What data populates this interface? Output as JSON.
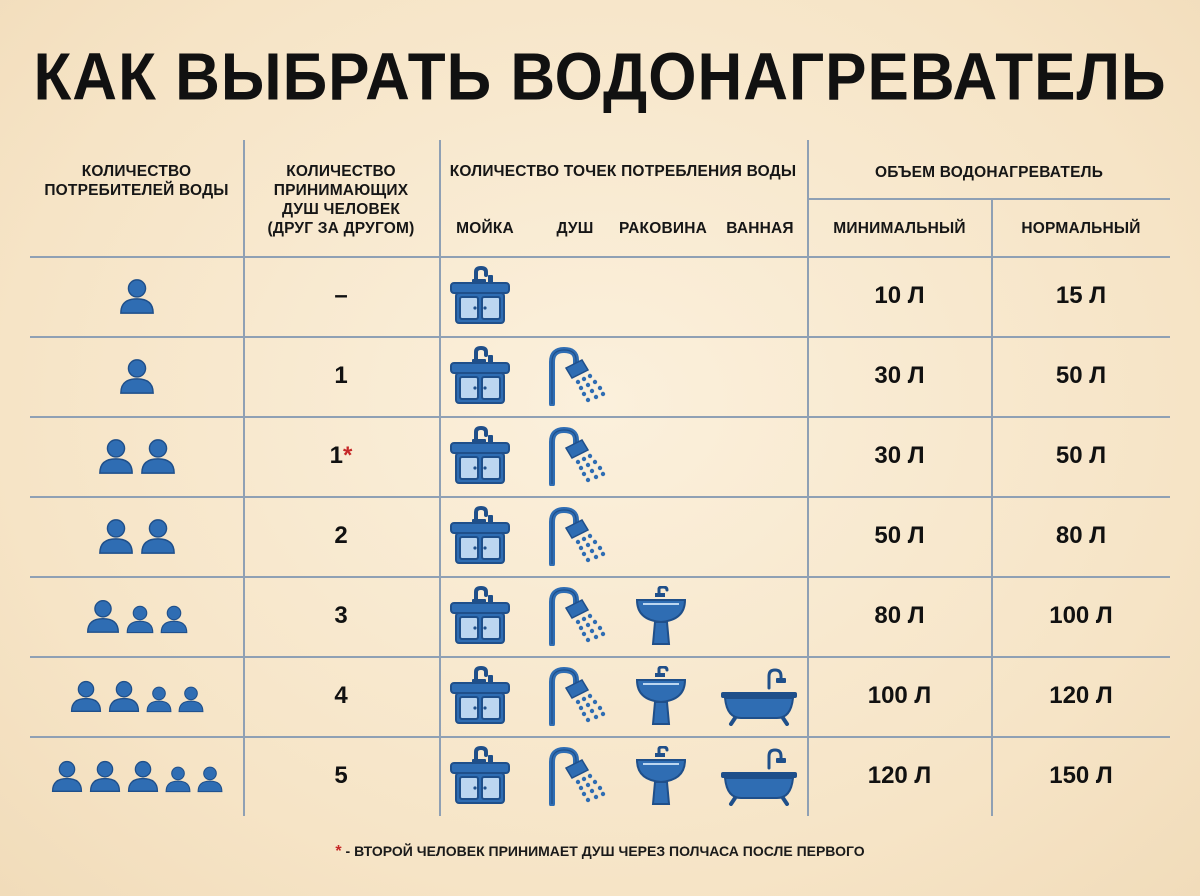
{
  "title": "КАК ВЫБРАТЬ ВОДОНАГРЕВАТЕЛЬ",
  "headers": {
    "consumers": "КОЛИЧЕСТВО ПОТРЕБИТЕЛЕЙ ВОДЫ",
    "showers": "КОЛИЧЕСТВО ПРИНИМАЮЩИХ ДУШ ЧЕЛОВЕК (ДРУГ ЗА ДРУГОМ)",
    "points": "КОЛИЧЕСТВО ТОЧЕК ПОТРЕБЛЕНИЯ ВОДЫ",
    "points_sub": [
      "МОЙКА",
      "ДУШ",
      "РАКОВИНА",
      "ВАННАЯ"
    ],
    "volume": "ОБЪЕМ ВОДОНАГРЕВАТЕЛЬ",
    "volume_sub": [
      "МИНИМАЛЬНЫЙ",
      "НОРМАЛЬНЫЙ"
    ]
  },
  "rows": [
    {
      "people": 1,
      "showers": "–",
      "star": "",
      "points": [
        "sink"
      ],
      "min": "10 Л",
      "norm": "15 Л"
    },
    {
      "people": 1,
      "showers": "1",
      "star": "",
      "points": [
        "sink",
        "shower"
      ],
      "min": "30 Л",
      "norm": "50 Л"
    },
    {
      "people": 2,
      "showers": "1",
      "star": "*",
      "points": [
        "sink",
        "shower"
      ],
      "min": "30 Л",
      "norm": "50 Л"
    },
    {
      "people": 2,
      "showers": "2",
      "star": "",
      "points": [
        "sink",
        "shower"
      ],
      "min": "50 Л",
      "norm": "80 Л"
    },
    {
      "people": 3,
      "showers": "3",
      "star": "",
      "points": [
        "sink",
        "shower",
        "basin"
      ],
      "min": "80 Л",
      "norm": "100 Л"
    },
    {
      "people": 4,
      "showers": "4",
      "star": "",
      "points": [
        "sink",
        "shower",
        "basin",
        "bathtub"
      ],
      "min": "100 Л",
      "norm": "120 Л"
    },
    {
      "people": 5,
      "showers": "5",
      "star": "",
      "points": [
        "sink",
        "shower",
        "basin",
        "bathtub"
      ],
      "min": "120 Л",
      "norm": "150 Л"
    }
  ],
  "footnote": {
    "star": "*",
    "text": " - ВТОРОЙ ЧЕЛОВЕК ПРИНИМАЕТ ДУШ ЧЕРЕЗ ПОЛЧАСА ПОСЛЕ ПЕРВОГО"
  },
  "colors": {
    "icon_fill": "#2f6db3",
    "icon_dark": "#1f4f8a",
    "star": "#c62828",
    "lines": "#8fa0b4"
  }
}
